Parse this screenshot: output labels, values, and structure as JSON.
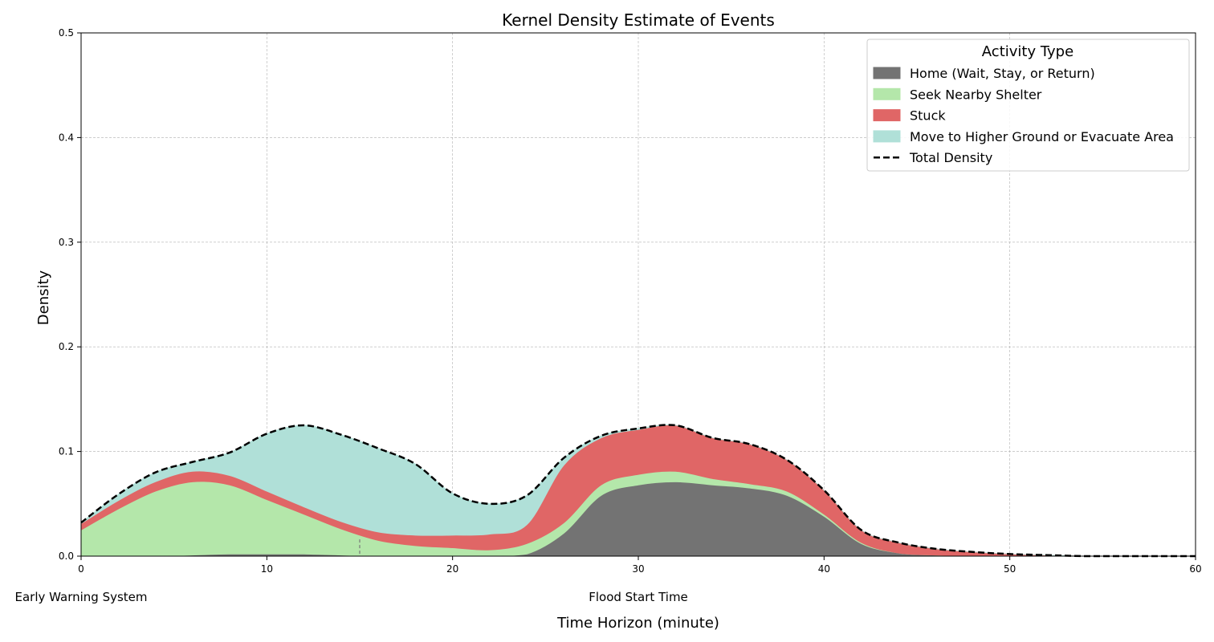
{
  "chart_data": {
    "type": "area",
    "title": "Kernel Density Estimate of Events",
    "xlabel": "Time Horizon (minute)",
    "ylabel": "Density",
    "xlim": [
      0,
      60
    ],
    "ylim": [
      0,
      0.5
    ],
    "xticks": [
      0,
      10,
      20,
      30,
      40,
      50,
      60
    ],
    "yticks": [
      0.0,
      0.1,
      0.2,
      0.3,
      0.4,
      0.5
    ],
    "grid": true,
    "stacked": true,
    "x": [
      0,
      2,
      4,
      6,
      8,
      10,
      12,
      14,
      16,
      18,
      20,
      22,
      24,
      26,
      28,
      30,
      32,
      34,
      36,
      38,
      40,
      42,
      44,
      46,
      48,
      50,
      52,
      54,
      56,
      58,
      60
    ],
    "series": [
      {
        "name": "Home (Wait, Stay, or Return)",
        "color": "#737373",
        "values": [
          0,
          0,
          0,
          0.001,
          0.002,
          0.002,
          0.002,
          0.001,
          0,
          0,
          0,
          0,
          0.002,
          0.022,
          0.058,
          0.068,
          0.071,
          0.068,
          0.065,
          0.058,
          0.038,
          0.012,
          0.003,
          0.001,
          0,
          0,
          0,
          0,
          0,
          0,
          0
        ]
      },
      {
        "name": "Seek Nearby Shelter",
        "color": "#b4e7aa",
        "values": [
          0.025,
          0.045,
          0.062,
          0.07,
          0.066,
          0.052,
          0.038,
          0.025,
          0.015,
          0.01,
          0.008,
          0.006,
          0.01,
          0.01,
          0.01,
          0.01,
          0.01,
          0.006,
          0.004,
          0.004,
          0.002,
          0.001,
          0,
          0,
          0,
          0,
          0,
          0,
          0,
          0,
          0
        ]
      },
      {
        "name": "Stuck",
        "color": "#e06666",
        "values": [
          0.006,
          0.008,
          0.009,
          0.01,
          0.009,
          0.008,
          0.007,
          0.007,
          0.008,
          0.01,
          0.012,
          0.015,
          0.018,
          0.055,
          0.045,
          0.043,
          0.044,
          0.039,
          0.038,
          0.03,
          0.023,
          0.012,
          0.01,
          0.006,
          0.004,
          0.002,
          0.001,
          0,
          0,
          0,
          0
        ]
      },
      {
        "name": "Move to Higher Ground or Evacuate Area",
        "color": "#b0e0d8",
        "values": [
          0.001,
          0.006,
          0.009,
          0.009,
          0.022,
          0.055,
          0.078,
          0.083,
          0.08,
          0.068,
          0.04,
          0.029,
          0.028,
          0.007,
          0.002,
          0.001,
          0,
          0,
          0,
          0,
          0,
          0,
          0,
          0,
          0,
          0,
          0,
          0,
          0,
          0,
          0
        ]
      }
    ],
    "total": {
      "name": "Total Density",
      "style": "dashed",
      "color": "#000000",
      "values": [
        0.032,
        0.059,
        0.08,
        0.09,
        0.099,
        0.117,
        0.125,
        0.116,
        0.103,
        0.088,
        0.06,
        0.05,
        0.058,
        0.094,
        0.115,
        0.122,
        0.125,
        0.113,
        0.107,
        0.092,
        0.063,
        0.025,
        0.013,
        0.007,
        0.004,
        0.002,
        0.001,
        0,
        0,
        0,
        0
      ]
    },
    "annotations": [
      {
        "text": "Early Warning System",
        "x": 0
      },
      {
        "text": "Flood Start Time",
        "x": 30
      }
    ],
    "vline": {
      "x": 15,
      "y_top": 0.016
    },
    "legend": {
      "title": "Activity Type",
      "position": "top-right"
    }
  }
}
